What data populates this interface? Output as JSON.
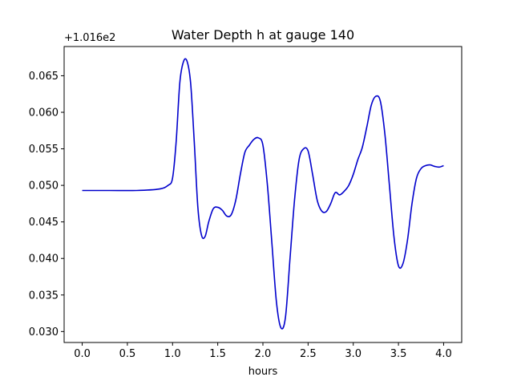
{
  "chart_data": {
    "type": "line",
    "title": "Water Depth h at gauge 140",
    "xlabel": "hours",
    "ylabel": "",
    "offset_label": "+1.016e2",
    "xlim": [
      -0.2,
      4.2
    ],
    "ylim": [
      0.0285,
      0.069
    ],
    "xticks": [
      0.0,
      0.5,
      1.0,
      1.5,
      2.0,
      2.5,
      3.0,
      3.5,
      4.0
    ],
    "xtick_labels": [
      "0.0",
      "0.5",
      "1.0",
      "1.5",
      "2.0",
      "2.5",
      "3.0",
      "3.5",
      "4.0"
    ],
    "yticks": [
      0.03,
      0.035,
      0.04,
      0.045,
      0.05,
      0.055,
      0.06,
      0.065
    ],
    "ytick_labels": [
      "0.030",
      "0.035",
      "0.040",
      "0.045",
      "0.050",
      "0.055",
      "0.060",
      "0.065"
    ],
    "grid": false,
    "series": [
      {
        "color": "#0000cc",
        "x": [
          0.0,
          0.3,
          0.6,
          0.85,
          0.95,
          1.0,
          1.04,
          1.08,
          1.12,
          1.16,
          1.2,
          1.24,
          1.28,
          1.32,
          1.36,
          1.4,
          1.45,
          1.5,
          1.55,
          1.6,
          1.65,
          1.7,
          1.75,
          1.8,
          1.85,
          1.9,
          1.95,
          2.0,
          2.05,
          2.1,
          2.15,
          2.2,
          2.25,
          2.3,
          2.35,
          2.4,
          2.45,
          2.5,
          2.55,
          2.6,
          2.65,
          2.7,
          2.75,
          2.8,
          2.85,
          2.9,
          2.95,
          3.0,
          3.05,
          3.1,
          3.15,
          3.2,
          3.25,
          3.3,
          3.35,
          3.4,
          3.45,
          3.5,
          3.55,
          3.6,
          3.65,
          3.7,
          3.75,
          3.8,
          3.85,
          3.9,
          3.95,
          4.0
        ],
        "y": [
          0.0493,
          0.0493,
          0.0493,
          0.0495,
          0.05,
          0.051,
          0.056,
          0.064,
          0.0669,
          0.067,
          0.064,
          0.056,
          0.047,
          0.0432,
          0.043,
          0.045,
          0.0468,
          0.047,
          0.0466,
          0.0458,
          0.046,
          0.048,
          0.0515,
          0.0545,
          0.0555,
          0.0563,
          0.0565,
          0.0555,
          0.05,
          0.042,
          0.034,
          0.0305,
          0.032,
          0.04,
          0.048,
          0.0535,
          0.055,
          0.0547,
          0.0515,
          0.048,
          0.0465,
          0.0464,
          0.0475,
          0.049,
          0.0487,
          0.0492,
          0.05,
          0.0515,
          0.0535,
          0.0552,
          0.058,
          0.061,
          0.0622,
          0.0615,
          0.057,
          0.05,
          0.043,
          0.039,
          0.0393,
          0.0425,
          0.0475,
          0.051,
          0.0523,
          0.0527,
          0.0528,
          0.0526,
          0.0525,
          0.0527
        ]
      }
    ]
  }
}
